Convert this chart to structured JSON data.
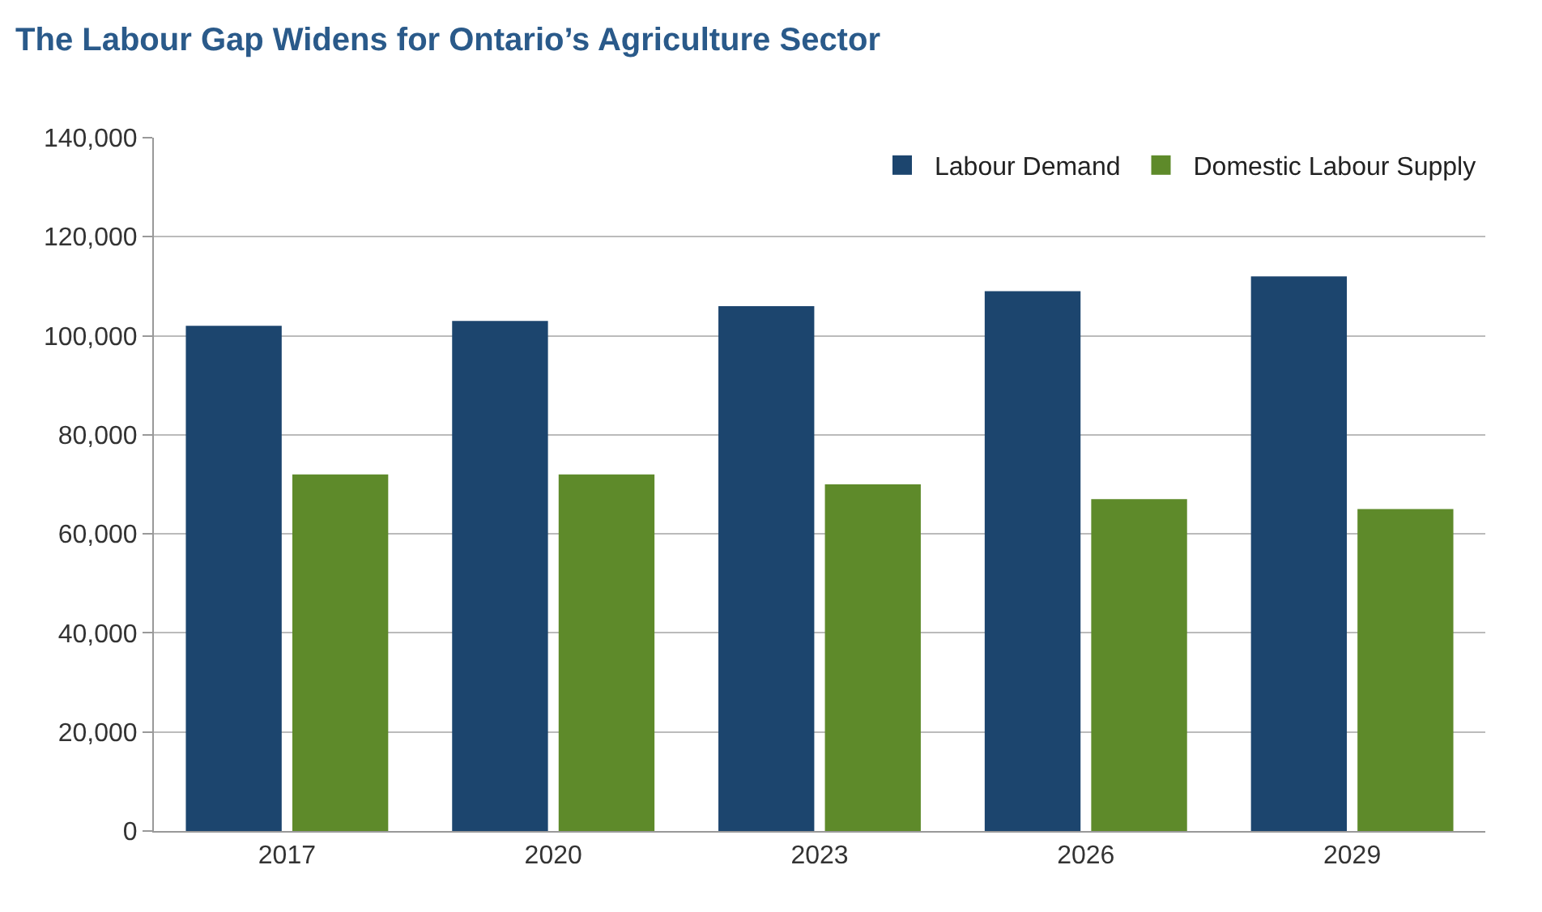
{
  "chart_data": {
    "type": "bar",
    "title": "The Labour Gap Widens for Ontario’s Agriculture Sector",
    "categories": [
      "2017",
      "2020",
      "2023",
      "2026",
      "2029"
    ],
    "series": [
      {
        "name": "Labour Demand",
        "color": "#1c456e",
        "values": [
          102000,
          103000,
          106000,
          109000,
          112000
        ]
      },
      {
        "name": "Domestic Labour Supply",
        "color": "#5e8a2a",
        "values": [
          72000,
          72000,
          70000,
          67000,
          65000
        ]
      }
    ],
    "ylim": [
      0,
      140000
    ],
    "yticks": [
      {
        "value": 0,
        "label": "0"
      },
      {
        "value": 20000,
        "label": "20,000"
      },
      {
        "value": 40000,
        "label": "40,000"
      },
      {
        "value": 60000,
        "label": "60,000"
      },
      {
        "value": 80000,
        "label": "80,000"
      },
      {
        "value": 100000,
        "label": "100,000"
      },
      {
        "value": 120000,
        "label": "120,000"
      },
      {
        "value": 140000,
        "label": "140,000"
      }
    ],
    "grid": "y",
    "legend": "top right"
  }
}
